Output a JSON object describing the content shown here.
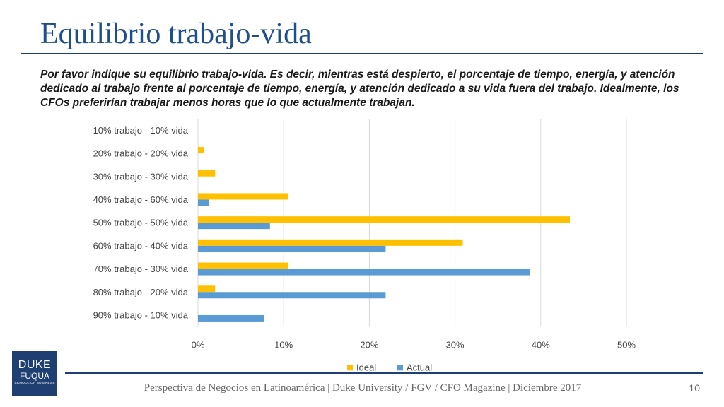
{
  "slide": {
    "title": "Equilibrio trabajo-vida",
    "subtitle": "Por favor indique su equilibrio trabajo-vida. Es decir, mientras está despierto, el porcentaje de tiempo, energía, y atención dedicado al trabajo frente al porcentaje de tiempo, energía, y atención dedicado a su vida fuera del trabajo. Idealmente, los CFOs preferirían trabajar menos horas que lo que actualmente trabajan.",
    "footer": "Perspectiva de Negocios en Latinoamérica | Duke University / FGV / CFO Magazine | Diciembre 2017",
    "page_number": "10",
    "logo": {
      "line1": "DUKE",
      "line2": "FUQUA",
      "line3": "SCHOOL OF BUSINESS"
    }
  },
  "chart_data": {
    "type": "bar",
    "orientation": "horizontal",
    "categories": [
      "10% trabajo - 10% vida",
      "20% trabajo - 20% vida",
      "30% trabajo - 30% vida",
      "40% trabajo - 60% vida",
      "50% trabajo - 50% vida",
      "60% trabajo - 40% vida",
      "70% trabajo - 30% vida",
      "80% trabajo - 20% vida",
      "90% trabajo - 10% vida"
    ],
    "series": [
      {
        "name": "Ideal",
        "color": "#FFC000",
        "values": [
          0,
          0.7,
          2.0,
          10.5,
          43.4,
          30.9,
          10.5,
          2.0,
          0
        ]
      },
      {
        "name": "Actual",
        "color": "#5B9BD5",
        "values": [
          0,
          0,
          0,
          1.3,
          8.4,
          21.9,
          38.7,
          21.9,
          7.7
        ]
      }
    ],
    "xlim": [
      0,
      50
    ],
    "xticks": [
      "0%",
      "10%",
      "20%",
      "30%",
      "40%",
      "50%"
    ],
    "grid": true,
    "legend_position": "bottom"
  }
}
